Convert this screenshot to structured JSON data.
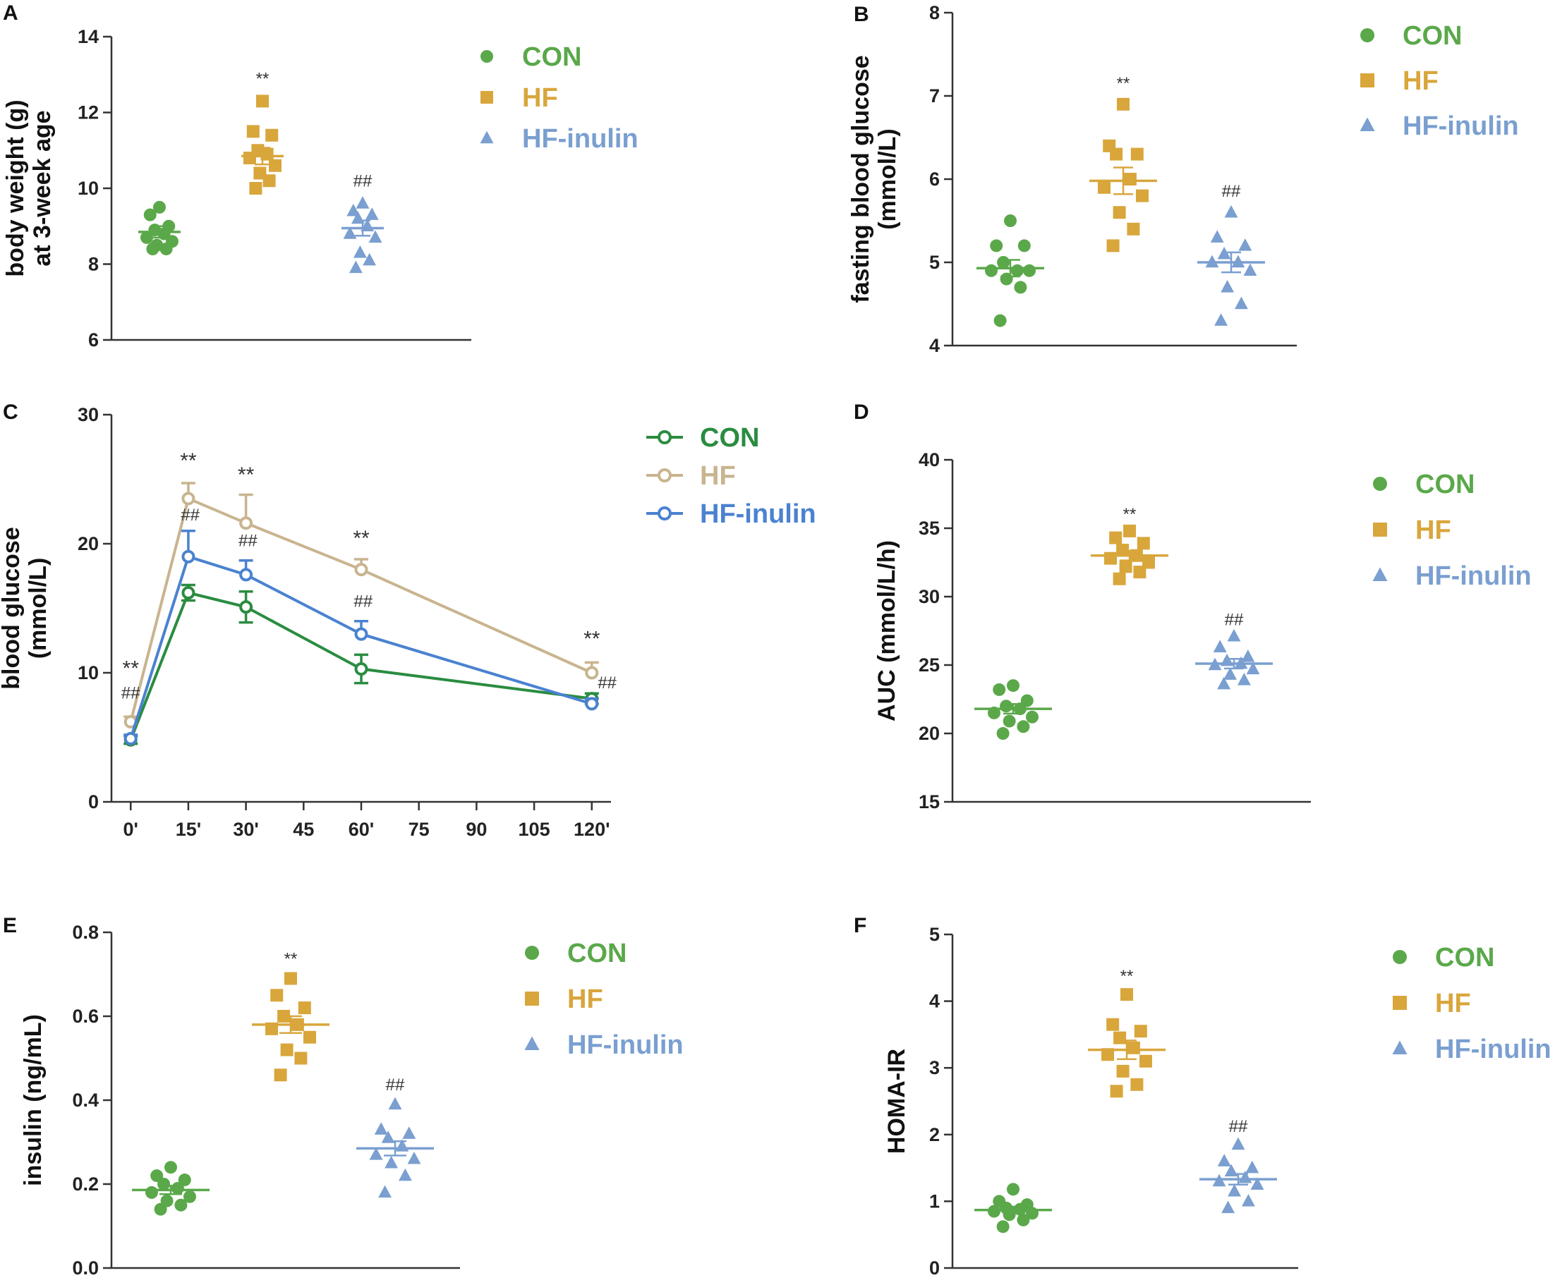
{
  "colors": {
    "CON": "#5aa84a",
    "HF": "#d9a63c",
    "HF-inulin": "#7a9fd0",
    "HF_line": "#c8b48f",
    "CON_line": "#2a8c40",
    "HFinulin_line": "#4a82d0",
    "axis": "#333333"
  },
  "chart_data": [
    {
      "panel": "A",
      "type": "scatter",
      "ylabel_lines": [
        "body weight (g)",
        "at 3-week age"
      ],
      "ylim": [
        6,
        14
      ],
      "yticks": [
        "6",
        "8",
        "10",
        "12",
        "14"
      ],
      "legend": [
        {
          "name": "CON",
          "marker": "circle"
        },
        {
          "name": "HF",
          "marker": "square"
        },
        {
          "name": "HF-inulin",
          "marker": "triangle"
        }
      ],
      "groups": [
        {
          "name": "CON",
          "values": [
            9.5,
            9.3,
            9.0,
            8.9,
            8.8,
            8.7,
            8.6,
            8.5,
            8.4,
            8.4
          ],
          "mean": 8.85,
          "sem": 0.15,
          "sig": ""
        },
        {
          "name": "HF",
          "values": [
            12.3,
            11.5,
            11.4,
            11.0,
            10.9,
            10.8,
            10.6,
            10.4,
            10.2,
            10.0
          ],
          "mean": 10.85,
          "sem": 0.22,
          "sig": "**"
        },
        {
          "name": "HF-inulin",
          "values": [
            9.6,
            9.4,
            9.3,
            9.2,
            9.0,
            8.8,
            8.7,
            8.3,
            8.1,
            7.9
          ],
          "mean": 8.95,
          "sem": 0.2,
          "sig": "##"
        }
      ]
    },
    {
      "panel": "B",
      "type": "scatter",
      "ylabel_lines": [
        "fasting blood glucose",
        "(mmol/L)"
      ],
      "ylim": [
        4,
        8
      ],
      "yticks": [
        "4",
        "5",
        "6",
        "7",
        "8"
      ],
      "legend": [
        {
          "name": "CON",
          "marker": "circle"
        },
        {
          "name": "HF",
          "marker": "square"
        },
        {
          "name": "HF-inulin",
          "marker": "triangle"
        }
      ],
      "groups": [
        {
          "name": "CON",
          "values": [
            5.5,
            5.2,
            5.2,
            5.0,
            4.9,
            4.9,
            4.9,
            4.8,
            4.7,
            4.3
          ],
          "mean": 4.93,
          "sem": 0.1,
          "sig": ""
        },
        {
          "name": "HF",
          "values": [
            6.9,
            6.4,
            6.3,
            6.3,
            6.0,
            5.9,
            5.8,
            5.6,
            5.4,
            5.2
          ],
          "mean": 5.98,
          "sem": 0.16,
          "sig": "**"
        },
        {
          "name": "HF-inulin",
          "values": [
            5.6,
            5.3,
            5.2,
            5.1,
            5.0,
            5.0,
            4.9,
            4.7,
            4.5,
            4.3
          ],
          "mean": 5.0,
          "sem": 0.12,
          "sig": "##"
        }
      ]
    },
    {
      "panel": "C",
      "type": "line",
      "ylabel_lines": [
        "blood glucose",
        "(mmol/L)"
      ],
      "ylim": [
        0,
        30
      ],
      "yticks": [
        "0",
        "10",
        "20",
        "30"
      ],
      "xlim": [
        -5,
        125
      ],
      "xticks": [
        {
          "v": 0,
          "label": "0'"
        },
        {
          "v": 15,
          "label": "15'"
        },
        {
          "v": 30,
          "label": "30'"
        },
        {
          "v": 45,
          "label": "45"
        },
        {
          "v": 60,
          "label": "60'"
        },
        {
          "v": 75,
          "label": "75"
        },
        {
          "v": 90,
          "label": "90"
        },
        {
          "v": 105,
          "label": "105"
        },
        {
          "v": 120,
          "label": "120'"
        }
      ],
      "x": [
        0,
        15,
        30,
        60,
        120
      ],
      "legend": [
        {
          "name": "CON"
        },
        {
          "name": "HF"
        },
        {
          "name": "HF-inulin"
        }
      ],
      "series": [
        {
          "name": "CON",
          "values": [
            4.8,
            16.2,
            15.1,
            10.3,
            8.0
          ],
          "err": [
            0.3,
            0.6,
            1.2,
            1.1,
            0.4
          ]
        },
        {
          "name": "HF",
          "values": [
            6.2,
            23.5,
            21.6,
            18.0,
            10.0
          ],
          "err": [
            0.4,
            1.2,
            2.2,
            0.8,
            0.8
          ]
        },
        {
          "name": "HF-inulin",
          "values": [
            4.9,
            19.0,
            17.6,
            13.0,
            7.6
          ],
          "err": [
            0.3,
            2.0,
            1.1,
            1.0,
            0.4
          ]
        }
      ],
      "annotations": [
        {
          "x": 0,
          "y": 9.8,
          "text": "**",
          "size": "big"
        },
        {
          "x": 0,
          "y": 8.0,
          "text": "##"
        },
        {
          "x": 15,
          "y": 25.9,
          "text": "**",
          "size": "big"
        },
        {
          "x": 15.5,
          "y": 21.8,
          "text": "##"
        },
        {
          "x": 30,
          "y": 24.8,
          "text": "**",
          "size": "big"
        },
        {
          "x": 30.5,
          "y": 19.8,
          "text": "##"
        },
        {
          "x": 60,
          "y": 19.9,
          "text": "**",
          "size": "big"
        },
        {
          "x": 60.5,
          "y": 15.1,
          "text": "##"
        },
        {
          "x": 120,
          "y": 12.1,
          "text": "**",
          "size": "big"
        },
        {
          "x": 124,
          "y": 8.8,
          "text": "##"
        }
      ]
    },
    {
      "panel": "D",
      "type": "scatter",
      "ylabel_lines": [
        "AUC (mmol/L/h)"
      ],
      "ylim": [
        15,
        40
      ],
      "yticks": [
        "15",
        "20",
        "25",
        "30",
        "35",
        "40"
      ],
      "legend": [
        {
          "name": "CON",
          "marker": "circle"
        },
        {
          "name": "HF",
          "marker": "square"
        },
        {
          "name": "HF-inulin",
          "marker": "triangle"
        }
      ],
      "groups": [
        {
          "name": "CON",
          "values": [
            23.5,
            23.2,
            22.4,
            22.0,
            21.8,
            21.5,
            21.2,
            20.9,
            20.5,
            20.0
          ],
          "mean": 21.8,
          "sem": 0.35,
          "sig": ""
        },
        {
          "name": "HF",
          "values": [
            34.8,
            34.3,
            33.9,
            33.4,
            33.0,
            32.8,
            32.5,
            32.2,
            31.8,
            31.3
          ],
          "mean": 33.0,
          "sem": 0.35,
          "sig": "**"
        },
        {
          "name": "HF-inulin",
          "values": [
            27.1,
            26.3,
            25.6,
            25.3,
            25.1,
            25.0,
            24.7,
            24.3,
            23.9,
            23.6
          ],
          "mean": 25.1,
          "sem": 0.35,
          "sig": "##"
        }
      ]
    },
    {
      "panel": "E",
      "type": "scatter",
      "ylabel_lines": [
        "insulin (ng/mL)"
      ],
      "ylim": [
        0.0,
        0.8
      ],
      "yticks": [
        "0.0",
        "0.2",
        "0.4",
        "0.6",
        "0.8"
      ],
      "legend": [
        {
          "name": "CON",
          "marker": "circle"
        },
        {
          "name": "HF",
          "marker": "square"
        },
        {
          "name": "HF-inulin",
          "marker": "triangle"
        }
      ],
      "groups": [
        {
          "name": "CON",
          "values": [
            0.24,
            0.22,
            0.21,
            0.2,
            0.19,
            0.18,
            0.17,
            0.16,
            0.15,
            0.14
          ],
          "mean": 0.186,
          "sem": 0.01,
          "sig": ""
        },
        {
          "name": "HF",
          "values": [
            0.69,
            0.65,
            0.62,
            0.6,
            0.58,
            0.57,
            0.55,
            0.52,
            0.5,
            0.46
          ],
          "mean": 0.58,
          "sem": 0.02,
          "sig": "**"
        },
        {
          "name": "HF-inulin",
          "values": [
            0.39,
            0.33,
            0.32,
            0.31,
            0.29,
            0.27,
            0.26,
            0.25,
            0.22,
            0.18
          ],
          "mean": 0.285,
          "sem": 0.017,
          "sig": "##"
        }
      ]
    },
    {
      "panel": "F",
      "type": "scatter",
      "ylabel_lines": [
        "HOMA-IR"
      ],
      "ylim": [
        0,
        5
      ],
      "yticks": [
        "0",
        "1",
        "2",
        "3",
        "4",
        "5"
      ],
      "legend": [
        {
          "name": "CON",
          "marker": "circle"
        },
        {
          "name": "HF",
          "marker": "square"
        },
        {
          "name": "HF-inulin",
          "marker": "triangle"
        }
      ],
      "groups": [
        {
          "name": "CON",
          "values": [
            1.18,
            1.0,
            0.95,
            0.9,
            0.88,
            0.85,
            0.82,
            0.8,
            0.72,
            0.62
          ],
          "mean": 0.87,
          "sem": 0.05,
          "sig": ""
        },
        {
          "name": "HF",
          "values": [
            4.1,
            3.65,
            3.55,
            3.45,
            3.3,
            3.2,
            3.1,
            2.95,
            2.75,
            2.65
          ],
          "mean": 3.27,
          "sem": 0.14,
          "sig": "**"
        },
        {
          "name": "HF-inulin",
          "values": [
            1.85,
            1.6,
            1.5,
            1.45,
            1.35,
            1.3,
            1.25,
            1.15,
            1.0,
            0.9
          ],
          "mean": 1.33,
          "sem": 0.08,
          "sig": "##"
        }
      ]
    }
  ]
}
